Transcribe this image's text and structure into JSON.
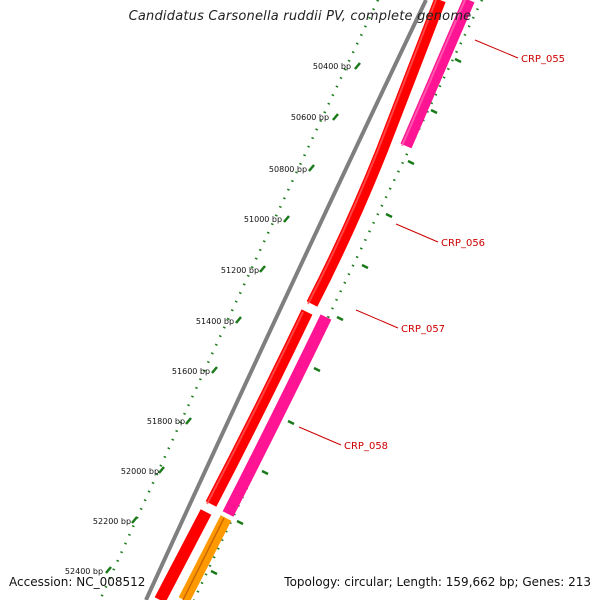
{
  "title": "Candidatus Carsonella ruddii PV, complete genome",
  "footer": {
    "accession": "Accession: NC_008512",
    "summary": "Topology: circular; Length: 159,662 bp; Genes: 213"
  },
  "colors": {
    "backbone": "#808080",
    "cds_forward": "#ff0000",
    "cds_reverse": "#ff1493",
    "rrna": "#ff9900",
    "ticks": "#1a7a1a",
    "labels": "#cc0000"
  },
  "chart_data": {
    "type": "diagram",
    "view": "circular genome map (zoomed)",
    "ticks": [
      {
        "label": "50400 bp"
      },
      {
        "label": "50600 bp"
      },
      {
        "label": "50800 bp"
      },
      {
        "label": "51000 bp"
      },
      {
        "label": "51200 bp"
      },
      {
        "label": "51400 bp"
      },
      {
        "label": "51600 bp"
      },
      {
        "label": "51800 bp"
      },
      {
        "label": "52000 bp"
      },
      {
        "label": "52200 bp"
      },
      {
        "label": "52400 bp"
      }
    ],
    "genes": [
      {
        "label": "CRP_055"
      },
      {
        "label": "CRP_056"
      },
      {
        "label": "CRP_057"
      },
      {
        "label": "CRP_058"
      }
    ]
  }
}
